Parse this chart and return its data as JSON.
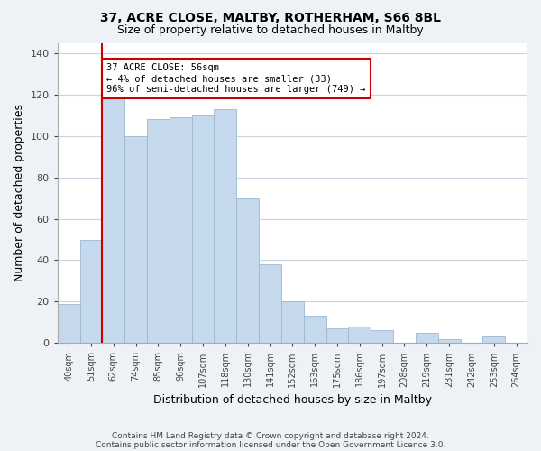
{
  "title": "37, ACRE CLOSE, MALTBY, ROTHERHAM, S66 8BL",
  "subtitle": "Size of property relative to detached houses in Maltby",
  "xlabel": "Distribution of detached houses by size in Maltby",
  "ylabel": "Number of detached properties",
  "bar_labels": [
    "40sqm",
    "51sqm",
    "62sqm",
    "74sqm",
    "85sqm",
    "96sqm",
    "107sqm",
    "118sqm",
    "130sqm",
    "141sqm",
    "152sqm",
    "163sqm",
    "175sqm",
    "186sqm",
    "197sqm",
    "208sqm",
    "219sqm",
    "231sqm",
    "242sqm",
    "253sqm",
    "264sqm"
  ],
  "bar_values": [
    19,
    50,
    118,
    100,
    108,
    109,
    110,
    113,
    70,
    38,
    20,
    13,
    7,
    8,
    6,
    0,
    5,
    2,
    0,
    3,
    0
  ],
  "bar_color": "#c6d9ec",
  "bar_edge_color": "#9ab8d4",
  "ylim": [
    0,
    145
  ],
  "yticks": [
    0,
    20,
    40,
    60,
    80,
    100,
    120,
    140
  ],
  "marker_color": "#cc0000",
  "annotation_text": "37 ACRE CLOSE: 56sqm\n← 4% of detached houses are smaller (33)\n96% of semi-detached houses are larger (749) →",
  "annotation_box_color": "#ffffff",
  "annotation_box_edge": "#cc0000",
  "footer_line1": "Contains HM Land Registry data © Crown copyright and database right 2024.",
  "footer_line2": "Contains public sector information licensed under the Open Government Licence 3.0.",
  "background_color": "#eef2f7",
  "plot_background_color": "#ffffff",
  "grid_color": "#c8d4e0"
}
